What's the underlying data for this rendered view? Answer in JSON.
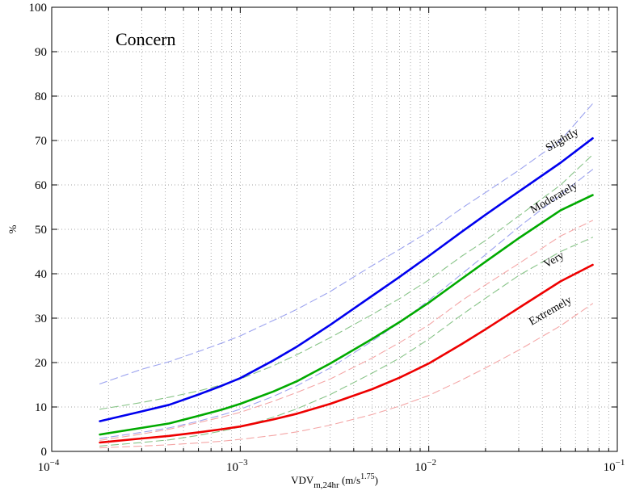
{
  "chart_data": {
    "type": "line",
    "title": "Concern",
    "xlabel": {
      "base": "VDV",
      "sub": "m,24hr",
      "unit_prefix": " (m/s",
      "unit_sup": "1.75",
      "unit_suffix": ")"
    },
    "ylabel": "%",
    "xscale": "log",
    "xlim": [
      0.0001,
      0.1
    ],
    "ylim": [
      0,
      100
    ],
    "grid": true,
    "x_ticks": [
      0.0001,
      0.001,
      0.01,
      0.1
    ],
    "x_tick_labels": [
      {
        "base": "10",
        "exp": "−4"
      },
      {
        "base": "10",
        "exp": "−3"
      },
      {
        "base": "10",
        "exp": "−2"
      },
      {
        "base": "10",
        "exp": "−1"
      }
    ],
    "y_ticks": [
      0,
      10,
      20,
      30,
      40,
      50,
      60,
      70,
      80,
      90,
      100
    ],
    "x": [
      0.00018,
      0.0003,
      0.00042,
      0.0006,
      0.0008,
      0.001,
      0.0015,
      0.002,
      0.003,
      0.005,
      0.007,
      0.01,
      0.015,
      0.02,
      0.03,
      0.05,
      0.074
    ],
    "series": [
      {
        "name": "Slightly",
        "color": "#0000ee",
        "style": "solid",
        "values": [
          6.8,
          9.0,
          10.5,
          12.8,
          14.8,
          16.5,
          20.5,
          23.6,
          28.5,
          35.0,
          39.3,
          44.0,
          49.5,
          53.3,
          58.5,
          65.0,
          70.5
        ]
      },
      {
        "name": "Slightly upper",
        "color": "#9ca3ef",
        "style": "dashed",
        "values": [
          15.2,
          18.5,
          20.2,
          22.5,
          24.4,
          26.0,
          29.5,
          32.0,
          36.0,
          41.8,
          45.5,
          49.5,
          54.8,
          58.3,
          63.3,
          70.0,
          78.3
        ]
      },
      {
        "name": "Slightly lower",
        "color": "#9ca3ef",
        "style": "dashed",
        "values": [
          2.9,
          4.3,
          5.3,
          6.8,
          8.2,
          9.5,
          12.4,
          14.8,
          18.8,
          24.8,
          29.0,
          34.0,
          40.0,
          44.3,
          50.5,
          57.8,
          63.5
        ]
      },
      {
        "name": "Moderately",
        "color": "#00aa00",
        "style": "solid",
        "values": [
          3.8,
          5.3,
          6.3,
          8.0,
          9.4,
          10.7,
          13.5,
          15.8,
          19.8,
          25.3,
          29.1,
          33.5,
          38.9,
          42.7,
          48.0,
          54.3,
          57.7
        ]
      },
      {
        "name": "Moderately upper",
        "color": "#88c488",
        "style": "dashed",
        "values": [
          9.5,
          11.0,
          12.2,
          13.6,
          15.0,
          16.3,
          19.3,
          21.8,
          25.6,
          30.8,
          34.4,
          38.6,
          44.0,
          47.5,
          53.0,
          60.0,
          66.8
        ]
      },
      {
        "name": "Moderately lower",
        "color": "#88c488",
        "style": "dashed",
        "values": [
          1.2,
          2.0,
          2.6,
          3.6,
          4.6,
          5.5,
          7.7,
          9.6,
          12.8,
          17.6,
          21.0,
          25.3,
          30.8,
          34.5,
          39.6,
          45.0,
          48.2
        ]
      },
      {
        "name": "Very",
        "color": "#ee0000",
        "style": "solid",
        "values": [
          2.0,
          2.9,
          3.5,
          4.3,
          5.0,
          5.6,
          7.2,
          8.5,
          10.7,
          14.0,
          16.6,
          19.8,
          24.2,
          27.5,
          32.3,
          38.3,
          42.0
        ]
      },
      {
        "name": "Very upper",
        "color": "#f4a6a6",
        "style": "dashed",
        "values": [
          2.5,
          3.9,
          5.0,
          6.5,
          7.7,
          8.8,
          11.3,
          13.3,
          16.3,
          21.0,
          24.5,
          28.5,
          34.0,
          37.5,
          42.3,
          48.5,
          52.0
        ]
      },
      {
        "name": "Very lower",
        "color": "#f4a6a6",
        "style": "dashed",
        "values": [
          0.8,
          1.2,
          1.5,
          1.9,
          2.3,
          2.7,
          3.6,
          4.4,
          5.9,
          8.3,
          10.2,
          12.6,
          16.1,
          18.8,
          22.8,
          28.3,
          33.3
        ]
      }
    ],
    "annotations": [
      {
        "text": "Slightly",
        "x": 0.052,
        "y": 69.5,
        "angle": -30
      },
      {
        "text": "Moderately",
        "x": 0.047,
        "y": 56.5,
        "angle": -30
      },
      {
        "text": "Very",
        "x": 0.047,
        "y": 42.5,
        "angle": -30
      },
      {
        "text": "Extremely",
        "x": 0.045,
        "y": 31.0,
        "angle": -30
      }
    ]
  }
}
